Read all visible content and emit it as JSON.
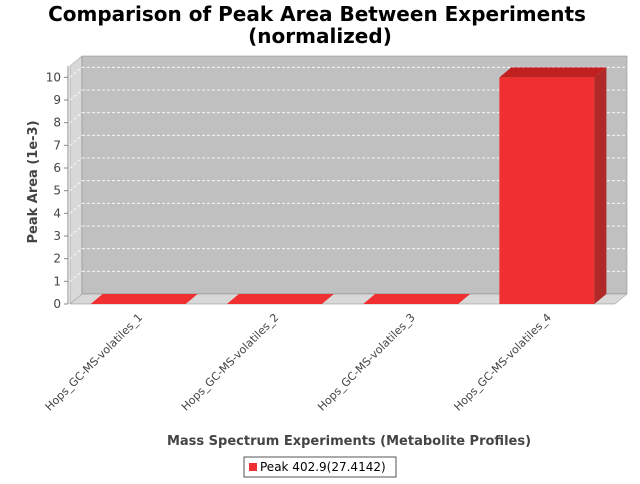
{
  "chart_data": {
    "type": "bar",
    "title_lines": [
      "Comparison of Peak Area Between Experiments",
      "(normalized)"
    ],
    "xlabel": "Mass Spectrum Experiments (Metabolite Profiles)",
    "ylabel": "Peak Area (1e-3)",
    "categories": [
      "Hops_GC-MS-volatiles_1",
      "Hops_GC-MS-volatiles_2",
      "Hops_GC-MS-volatiles_3",
      "Hops_GC-MS-volatiles_4"
    ],
    "series": [
      {
        "name": "Peak 402.9(27.4142)",
        "values": [
          0,
          0,
          0,
          10
        ]
      }
    ],
    "ylim": [
      0,
      10.5
    ],
    "yticks": [
      0,
      1,
      2,
      3,
      4,
      5,
      6,
      7,
      8,
      9,
      10
    ],
    "grid": true,
    "legend_position": "bottom",
    "colors": {
      "bar_front": "#f03030",
      "bar_top": "#c02020",
      "bar_side": "#b02828",
      "plot_back": "#c0c0c0",
      "plot_wall": "#d8d8d8",
      "grid": "#ffffff"
    }
  }
}
